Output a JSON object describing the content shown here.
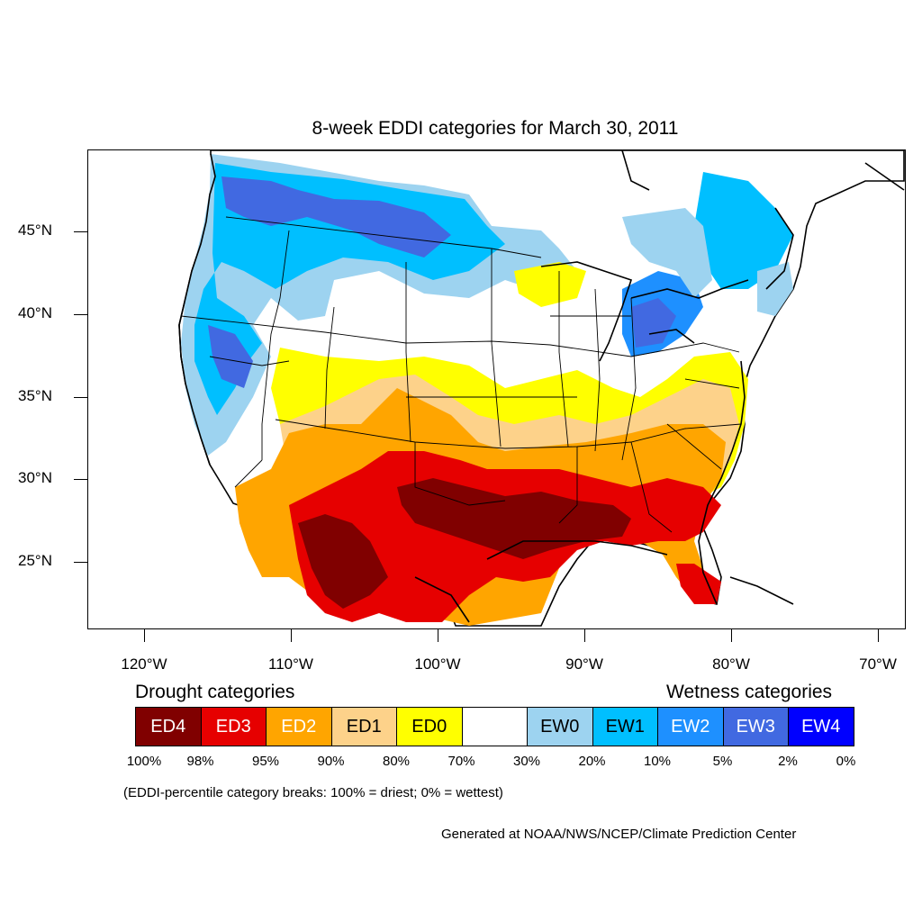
{
  "title": "8-week EDDI categories for March 30, 2011",
  "latitude_labels": [
    "45°N",
    "40°N",
    "35°N",
    "30°N",
    "25°N"
  ],
  "longitude_labels": [
    "120°W",
    "110°W",
    "100°W",
    "90°W",
    "80°W",
    "70°W"
  ],
  "legend": {
    "drought_heading": "Drought categories",
    "wetness_heading": "Wetness categories",
    "categories": [
      {
        "label": "ED4",
        "color": "#800000"
      },
      {
        "label": "ED3",
        "color": "#e60000"
      },
      {
        "label": "ED2",
        "color": "#ffa500"
      },
      {
        "label": "ED1",
        "color": "#fdd28a"
      },
      {
        "label": "ED0",
        "color": "#ffff00"
      },
      {
        "label": "",
        "color": "#ffffff"
      },
      {
        "label": "EW0",
        "color": "#9dd3f0"
      },
      {
        "label": "EW1",
        "color": "#00bfff"
      },
      {
        "label": "EW2",
        "color": "#1e90ff"
      },
      {
        "label": "EW3",
        "color": "#4169e1"
      },
      {
        "label": "EW4",
        "color": "#0000ff"
      }
    ],
    "breaks": [
      "100%",
      "98%",
      "95%",
      "90%",
      "80%",
      "70%",
      "30%",
      "20%",
      "10%",
      "5%",
      "2%",
      "0%"
    ]
  },
  "note": "(EDDI-percentile category breaks: 100% = driest; 0% = wettest)",
  "credit": "Generated at NOAA/NWS/NCEP/Climate Prediction Center"
}
